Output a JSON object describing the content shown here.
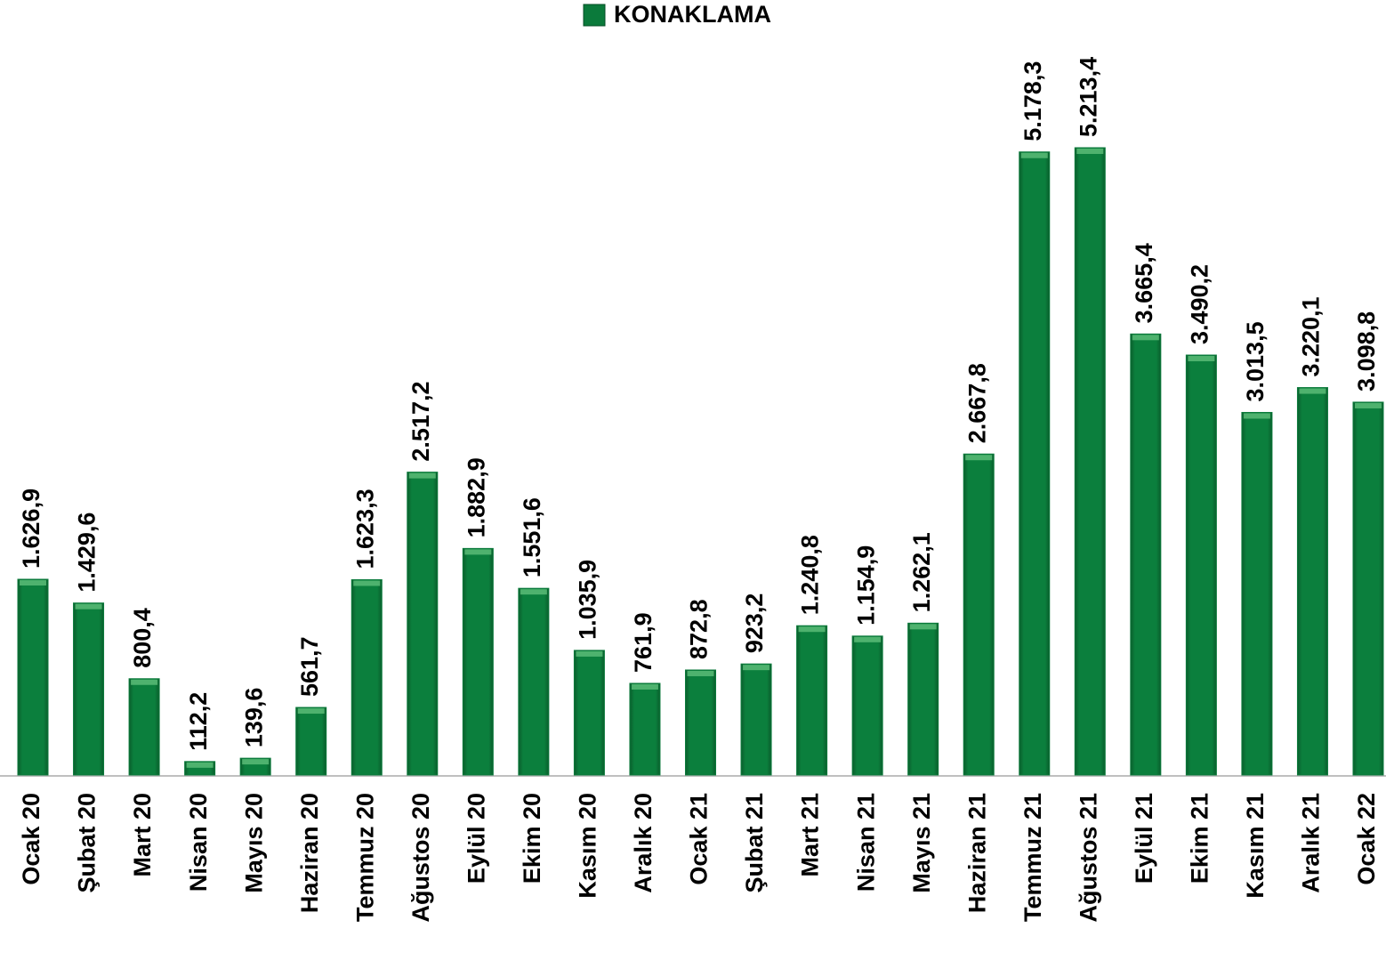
{
  "chart_data": {
    "type": "bar",
    "categories": [
      "Ocak 20",
      "Şubat 20",
      "Mart 20",
      "Nisan 20",
      "Mayıs 20",
      "Haziran 20",
      "Temmuz 20",
      "Ağustos 20",
      "Eylül 20",
      "Ekim 20",
      "Kasım 20",
      "Aralık 20",
      "Ocak 21",
      "Şubat 21",
      "Mart 21",
      "Nisan 21",
      "Mayıs 21",
      "Haziran 21",
      "Temmuz 21",
      "Ağustos 21",
      "Eylül 21",
      "Ekim 21",
      "Kasım 21",
      "Aralık 21",
      "Ocak 22"
    ],
    "series": [
      {
        "name": "KONAKLAMA",
        "color": "#0b7a3b",
        "values": [
          1626.9,
          1429.6,
          800.4,
          112.2,
          139.6,
          561.7,
          1623.3,
          2517.2,
          1882.9,
          1551.6,
          1035.9,
          761.9,
          872.8,
          923.2,
          1240.8,
          1154.9,
          1262.1,
          2667.8,
          5178.3,
          5213.4,
          3665.4,
          3490.2,
          3013.5,
          3220.1,
          3098.8
        ],
        "value_labels": [
          "1.626,9",
          "1.429,6",
          "800,4",
          "112,2",
          "139,6",
          "561,7",
          "1.623,3",
          "2.517,2",
          "1.882,9",
          "1.551,6",
          "1.035,9",
          "761,9",
          "872,8",
          "923,2",
          "1.240,8",
          "1.154,9",
          "1.262,1",
          "2.667,8",
          "5.178,3",
          "5.213,4",
          "3.665,4",
          "3.490,2",
          "3.013,5",
          "3.220,1",
          "3.098,8"
        ]
      }
    ],
    "legend": "top"
  }
}
